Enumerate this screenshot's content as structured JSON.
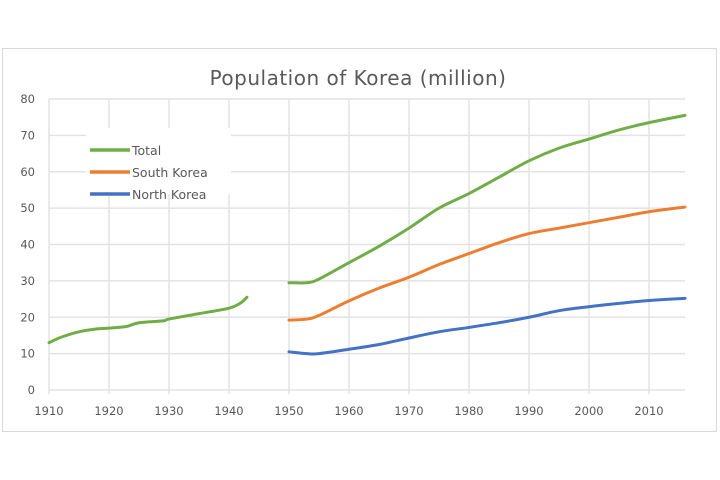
{
  "chart_data": {
    "type": "line",
    "title": "Population of Korea (million)",
    "xlabel": "",
    "ylabel": "",
    "xlim": [
      1910,
      2016
    ],
    "ylim": [
      0,
      80
    ],
    "x_ticks": [
      "1910",
      "1920",
      "1930",
      "1940",
      "1950",
      "1960",
      "1970",
      "1980",
      "1990",
      "2000",
      "2010"
    ],
    "y_ticks": [
      "0",
      "10",
      "20",
      "30",
      "40",
      "50",
      "60",
      "70",
      "80"
    ],
    "grid": true,
    "legend_position": "top-left",
    "series": [
      {
        "name": "Total",
        "color": "#70ad47",
        "segments": [
          [
            [
              1910,
              13
            ],
            [
              1912,
              14.5
            ],
            [
              1915,
              16
            ],
            [
              1918,
              16.8
            ],
            [
              1920,
              17
            ],
            [
              1923,
              17.5
            ],
            [
              1925,
              18.5
            ],
            [
              1929,
              19
            ],
            [
              1930,
              19.5
            ],
            [
              1935,
              21
            ],
            [
              1940,
              22.5
            ],
            [
              1942,
              24
            ],
            [
              1943,
              25.5
            ]
          ],
          [
            [
              1950,
              29.5
            ],
            [
              1953,
              29.5
            ],
            [
              1955,
              30.5
            ],
            [
              1960,
              35
            ],
            [
              1965,
              39.5
            ],
            [
              1970,
              44.5
            ],
            [
              1975,
              50
            ],
            [
              1980,
              54
            ],
            [
              1985,
              58.5
            ],
            [
              1990,
              63
            ],
            [
              1995,
              66.5
            ],
            [
              2000,
              69
            ],
            [
              2005,
              71.5
            ],
            [
              2010,
              73.5
            ],
            [
              2016,
              75.5
            ]
          ]
        ]
      },
      {
        "name": "South Korea",
        "color": "#ed7d31",
        "segments": [
          [
            [
              1950,
              19.2
            ],
            [
              1953,
              19.5
            ],
            [
              1955,
              20.5
            ],
            [
              1960,
              24.5
            ],
            [
              1965,
              28
            ],
            [
              1970,
              31
            ],
            [
              1975,
              34.5
            ],
            [
              1980,
              37.5
            ],
            [
              1985,
              40.5
            ],
            [
              1990,
              43
            ],
            [
              1995,
              44.5
            ],
            [
              2000,
              46
            ],
            [
              2005,
              47.5
            ],
            [
              2010,
              49
            ],
            [
              2016,
              50.3
            ]
          ]
        ]
      },
      {
        "name": "North Korea",
        "color": "#4472c4",
        "segments": [
          [
            [
              1950,
              10.5
            ],
            [
              1953,
              10
            ],
            [
              1955,
              10
            ],
            [
              1960,
              11.2
            ],
            [
              1965,
              12.5
            ],
            [
              1970,
              14.3
            ],
            [
              1975,
              16
            ],
            [
              1980,
              17.2
            ],
            [
              1985,
              18.5
            ],
            [
              1990,
              20
            ],
            [
              1995,
              21.8
            ],
            [
              2000,
              22.9
            ],
            [
              2005,
              23.8
            ],
            [
              2010,
              24.6
            ],
            [
              2016,
              25.2
            ]
          ]
        ]
      }
    ]
  }
}
